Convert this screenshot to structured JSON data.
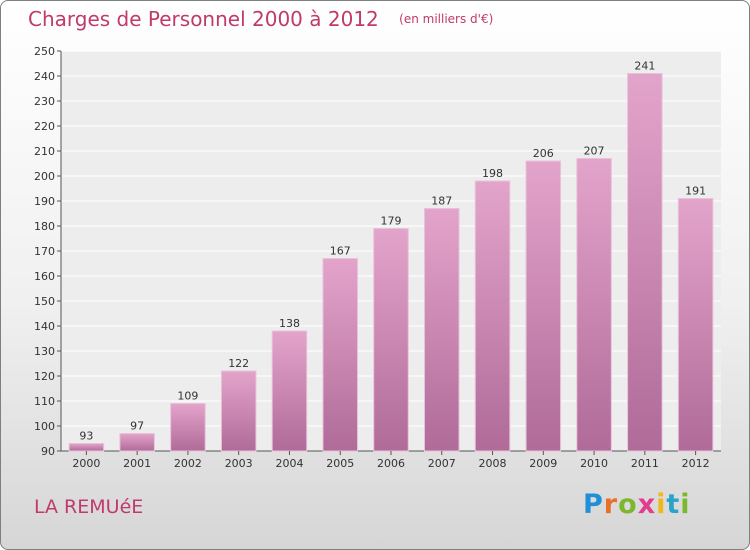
{
  "header": {
    "title": "Charges de Personnel 2000 à 2012",
    "unit": "(en milliers d'€)"
  },
  "footer": {
    "location": "LA REMUéE",
    "logo_text": "Proxiti"
  },
  "colors": {
    "accent": "#c03a6b",
    "bar_top": "#e3a4cb",
    "bar_bottom": "#b06b98"
  },
  "chart_data": {
    "type": "bar",
    "title": "Charges de Personnel 2000 à 2012",
    "subtitle": "(en milliers d'€)",
    "categories": [
      "2000",
      "2001",
      "2002",
      "2003",
      "2004",
      "2005",
      "2006",
      "2007",
      "2008",
      "2009",
      "2010",
      "2011",
      "2012"
    ],
    "values": [
      93,
      97,
      109,
      122,
      138,
      167,
      179,
      187,
      198,
      206,
      207,
      241,
      191
    ],
    "ylim": [
      90,
      250
    ],
    "ytick_step": 10,
    "grid": true,
    "xlabel": "",
    "ylabel": ""
  }
}
